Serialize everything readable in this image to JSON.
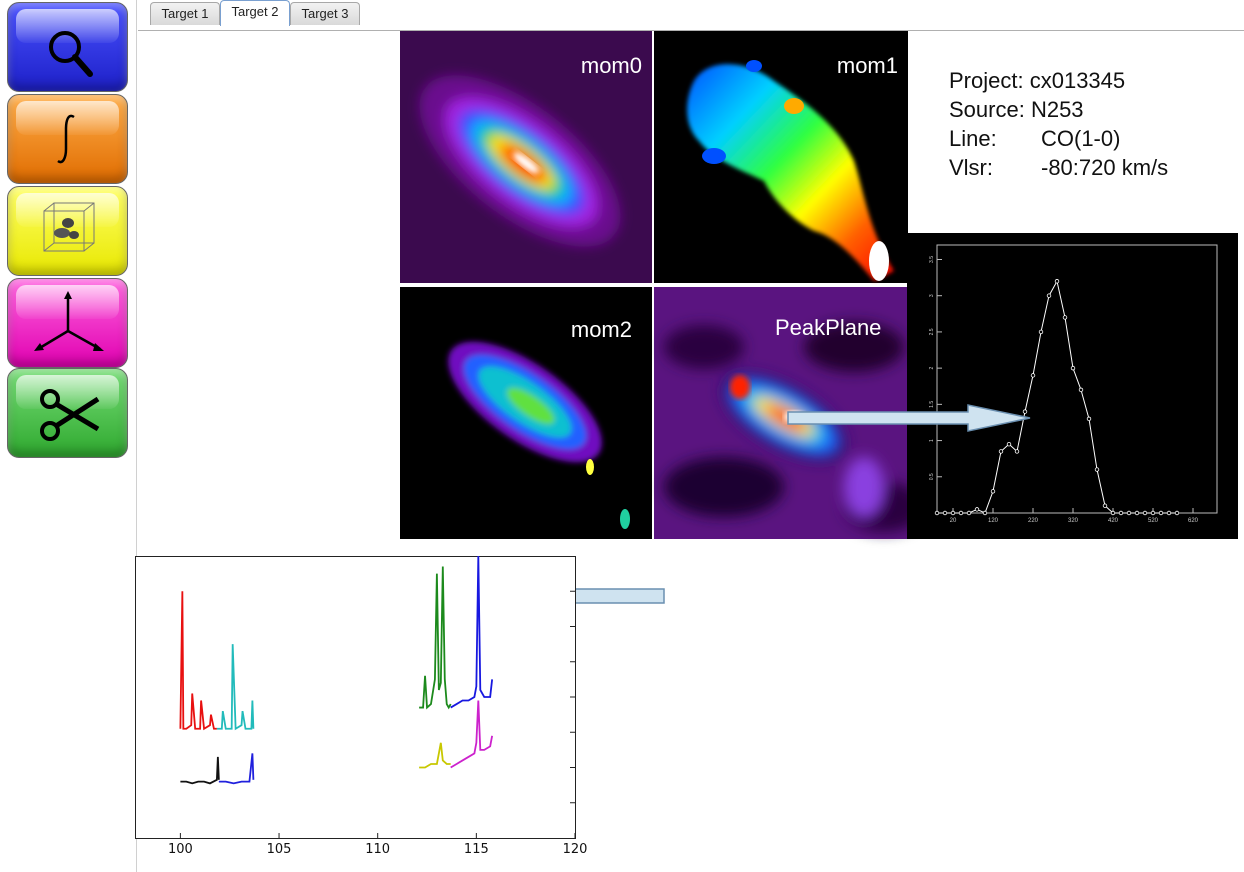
{
  "tabs": [
    "Target 1",
    "Target 2",
    "Target 3"
  ],
  "active_tab": "Target 2",
  "toolbar": {
    "tools": [
      {
        "icon": "magnifier-icon",
        "color": "#2b2fe8"
      },
      {
        "icon": "integral-icon",
        "color": "#f08a1a"
      },
      {
        "icon": "3d-cube-icon",
        "color": "#f2f21e"
      },
      {
        "icon": "axes-icon",
        "color": "#f01ad0"
      },
      {
        "icon": "scissors-icon",
        "color": "#44b844"
      }
    ]
  },
  "maps": {
    "mom0": "mom0",
    "mom1": "mom1",
    "mom2": "mom2",
    "peak": "PeakPlane"
  },
  "info": {
    "project_key": "Project:",
    "project_val": "cx013345",
    "source_key": "Source:",
    "source_val": "N253",
    "line_key": "Line:",
    "line_val": "CO(1-0)",
    "vlsr_key": "Vlsr:",
    "vlsr_val": "-80:720 km/s"
  },
  "chart_data": [
    {
      "type": "line",
      "x_ticks": [
        "20",
        "120",
        "220",
        "320",
        "420",
        "520",
        "620"
      ],
      "y_ticks": [
        "0.5",
        "1",
        "1.5",
        "2",
        "2.5",
        "3",
        "3.5"
      ],
      "xlim": [
        -20,
        680
      ],
      "ylim": [
        0,
        3.7
      ],
      "x": [
        -20,
        0,
        20,
        40,
        60,
        80,
        100,
        120,
        140,
        160,
        180,
        200,
        220,
        240,
        260,
        280,
        300,
        320,
        340,
        360,
        380,
        400,
        420,
        440,
        460,
        480,
        500,
        520,
        540,
        560,
        580
      ],
      "y": [
        0,
        0,
        0,
        0,
        0,
        0.05,
        0,
        0.3,
        0.85,
        0.95,
        0.85,
        1.4,
        1.9,
        2.5,
        3.0,
        3.2,
        2.7,
        2.0,
        1.7,
        1.3,
        0.6,
        0.1,
        0,
        0,
        0,
        0,
        0,
        0,
        0,
        0,
        0
      ],
      "color": "#ffffff"
    },
    {
      "type": "line",
      "x_ticks": [
        "100",
        "105",
        "110",
        "115",
        "120"
      ],
      "xlim": [
        97.7,
        120
      ],
      "ylim": [
        0,
        8
      ],
      "grid": false,
      "series": [
        {
          "color": "#e81010",
          "x": [
            100.0,
            100.1,
            100.15,
            100.3,
            100.55,
            100.6,
            100.75,
            101.0,
            101.05,
            101.2,
            101.5,
            101.55,
            101.7,
            101.85
          ],
          "y": [
            3.1,
            7.0,
            3.1,
            3.1,
            3.2,
            4.1,
            3.1,
            3.1,
            3.9,
            3.1,
            3.2,
            3.5,
            3.1,
            3.1
          ]
        },
        {
          "color": "#22bbbb",
          "x": [
            101.85,
            102.1,
            102.15,
            102.3,
            102.6,
            102.65,
            102.8,
            103.1,
            103.15,
            103.3,
            103.6,
            103.65,
            103.7
          ],
          "y": [
            3.1,
            3.1,
            3.6,
            3.1,
            3.1,
            5.5,
            3.1,
            3.2,
            3.6,
            3.1,
            3.1,
            3.9,
            3.1
          ]
        },
        {
          "color": "#111111",
          "x": [
            100.0,
            100.3,
            100.6,
            100.9,
            101.2,
            101.5,
            101.85,
            101.9,
            101.95
          ],
          "y": [
            1.6,
            1.6,
            1.55,
            1.6,
            1.6,
            1.55,
            1.65,
            2.3,
            1.65
          ]
        },
        {
          "color": "#2020dd",
          "x": [
            101.95,
            102.3,
            102.7,
            103.1,
            103.5,
            103.65,
            103.7
          ],
          "y": [
            1.6,
            1.6,
            1.55,
            1.6,
            1.6,
            2.4,
            1.65
          ]
        },
        {
          "color": "#1c8a1c",
          "x": [
            112.1,
            112.3,
            112.4,
            112.5,
            112.7,
            112.9,
            113.0,
            113.1,
            113.2,
            113.3,
            113.4,
            113.5,
            113.6,
            113.7
          ],
          "y": [
            3.7,
            3.7,
            4.6,
            3.7,
            3.8,
            4.5,
            7.5,
            4.2,
            4.4,
            7.7,
            4.5,
            3.8,
            3.7,
            3.8
          ]
        },
        {
          "color": "#1818e0",
          "x": [
            113.7,
            114.0,
            114.3,
            114.6,
            114.9,
            115.0,
            115.1,
            115.2,
            115.4,
            115.7,
            115.8
          ],
          "y": [
            3.7,
            3.8,
            3.9,
            3.9,
            4.0,
            4.3,
            8.0,
            4.2,
            4.0,
            4.0,
            4.5
          ]
        },
        {
          "color": "#c8c800",
          "x": [
            112.1,
            112.4,
            112.7,
            113.0,
            113.1,
            113.2,
            113.3,
            113.5,
            113.7
          ],
          "y": [
            2.0,
            2.0,
            2.1,
            2.1,
            2.4,
            2.7,
            2.2,
            2.1,
            2.1
          ]
        },
        {
          "color": "#cc22cc",
          "x": [
            113.7,
            114.0,
            114.3,
            114.6,
            114.9,
            115.0,
            115.1,
            115.2,
            115.4,
            115.7,
            115.8
          ],
          "y": [
            2.0,
            2.1,
            2.2,
            2.3,
            2.4,
            2.7,
            3.9,
            2.5,
            2.5,
            2.6,
            2.9
          ]
        }
      ]
    }
  ]
}
